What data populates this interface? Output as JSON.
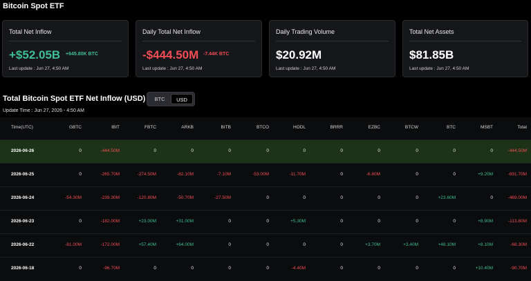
{
  "page": {
    "title": "Bitcoin Spot ETF"
  },
  "cards": [
    {
      "title": "Total Net Inflow",
      "value": "+$52.05B",
      "value_tone": "pos",
      "sub": "+645.80K BTC",
      "sub_tone": "pos",
      "update": "Last update : Jun 27, 4:50 AM"
    },
    {
      "title": "Daily Total Net Inflow",
      "value": "-$444.50M",
      "value_tone": "neg",
      "sub": "-7.44K BTC",
      "sub_tone": "neg",
      "update": "Last update : Jun 27, 4:50 AM"
    },
    {
      "title": "Daily Trading Volume",
      "value": "$20.92M",
      "value_tone": "white",
      "sub": "",
      "sub_tone": "white",
      "update": "Last update : Jun 27, 4:50 AM"
    },
    {
      "title": "Total Net Assets",
      "value": "$81.85B",
      "value_tone": "white",
      "sub": "",
      "sub_tone": "white",
      "update": "Last update : Jun 27, 4:50 AM"
    }
  ],
  "section": {
    "title": "Total Bitcoin Spot ETF Net Inflow (USD)",
    "toggle": {
      "btc": "BTC",
      "usd": "USD",
      "selected": "USD"
    },
    "update_time": "Update Time : Jun 27, 2026 - 4:50 AM"
  },
  "table": {
    "headers": [
      "Time(UTC)",
      "GBTC",
      "IBIT",
      "FBTC",
      "ARKB",
      "BITB",
      "BTCO",
      "HODL",
      "BRRR",
      "EZBC",
      "BTCW",
      "BTC",
      "MSBT",
      "Total"
    ],
    "rows": [
      {
        "highlight": true,
        "cells": [
          "2026-06-26",
          "0",
          "-444.50M",
          "0",
          "0",
          "0",
          "0",
          "0",
          "0",
          "0",
          "0",
          "0",
          "0",
          "-444.50M"
        ]
      },
      {
        "highlight": false,
        "cells": [
          "2026-06-25",
          "0",
          "-265.70M",
          "-274.50M",
          "-82.10M",
          "-7.10M",
          "-53.00M",
          "-11.70M",
          "0",
          "-6.80M",
          "0",
          "0",
          "+9.20M",
          "-691.70M"
        ]
      },
      {
        "highlight": false,
        "cells": [
          "2026-06-24",
          "-54.30M",
          "-239.30M",
          "-120.80M",
          "-50.70M",
          "-27.50M",
          "0",
          "0",
          "0",
          "0",
          "0",
          "+23.60M",
          "0",
          "-469.00M"
        ]
      },
      {
        "highlight": false,
        "cells": [
          "2026-06-23",
          "0",
          "-182.00M",
          "+23.00M",
          "+31.00M",
          "0",
          "0",
          "+5.30M",
          "0",
          "0",
          "0",
          "0",
          "+8.90M",
          "-113.80M"
        ]
      },
      {
        "highlight": false,
        "cells": [
          "2026-06-22",
          "-81.00M",
          "-172.00M",
          "+57.40M",
          "+64.00M",
          "0",
          "0",
          "0",
          "0",
          "+3.70M",
          "+3.40M",
          "+48.10M",
          "+8.10M",
          "-68.30M"
        ]
      },
      {
        "highlight": false,
        "cells": [
          "2026-06-18",
          "0",
          "-96.70M",
          "0",
          "0",
          "0",
          "0",
          "-4.40M",
          "0",
          "0",
          "0",
          "0",
          "+10.40M",
          "-90.70M"
        ]
      }
    ]
  },
  "colors": {
    "positive": "#3fbf94",
    "negative": "#f04e55",
    "highlight_row": "#1d3317",
    "card_bg": "#16171a"
  }
}
